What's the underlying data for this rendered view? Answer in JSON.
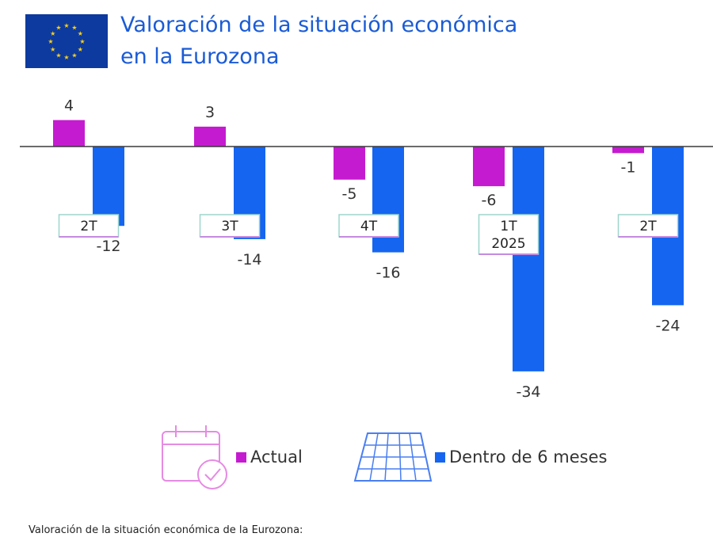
{
  "header": {
    "title_line1": "Valoración de la situación económica",
    "title_line2": "en la Eurozona"
  },
  "icons": {
    "flag": "eu-flag-icon",
    "calendar": "calendar-check-icon",
    "grid": "calendar-grid-icon"
  },
  "colors": {
    "actual": "#c51bd0",
    "future": "#1565f0",
    "title": "#1a5bd6",
    "flag": "#0d3a9e",
    "stars": "#f5d020"
  },
  "chart_data": {
    "type": "bar",
    "categories": [
      "2T",
      "3T",
      "4T",
      "1T\n2025",
      "2T"
    ],
    "series": [
      {
        "name": "Actual",
        "values": [
          4,
          3,
          -5,
          -6,
          -1
        ]
      },
      {
        "name": "Dentro de 6 meses",
        "values": [
          -12,
          -14,
          -16,
          -34,
          -24
        ]
      }
    ],
    "data_labels": {
      "Actual": [
        "4",
        "3",
        "-5",
        "-6",
        "-1"
      ],
      "Dentro de 6 meses": [
        "-12",
        "-14",
        "-16",
        "-34",
        "-24"
      ]
    },
    "title": "Valoración de la situación económica en la Eurozona",
    "xlabel": "",
    "ylabel": "",
    "grid": false,
    "legend": "bottom"
  },
  "legend": {
    "actual_label": "Actual",
    "future_label": "Dentro de 6 meses"
  },
  "footnote": "Valoración de la situación económica de la Eurozona:"
}
